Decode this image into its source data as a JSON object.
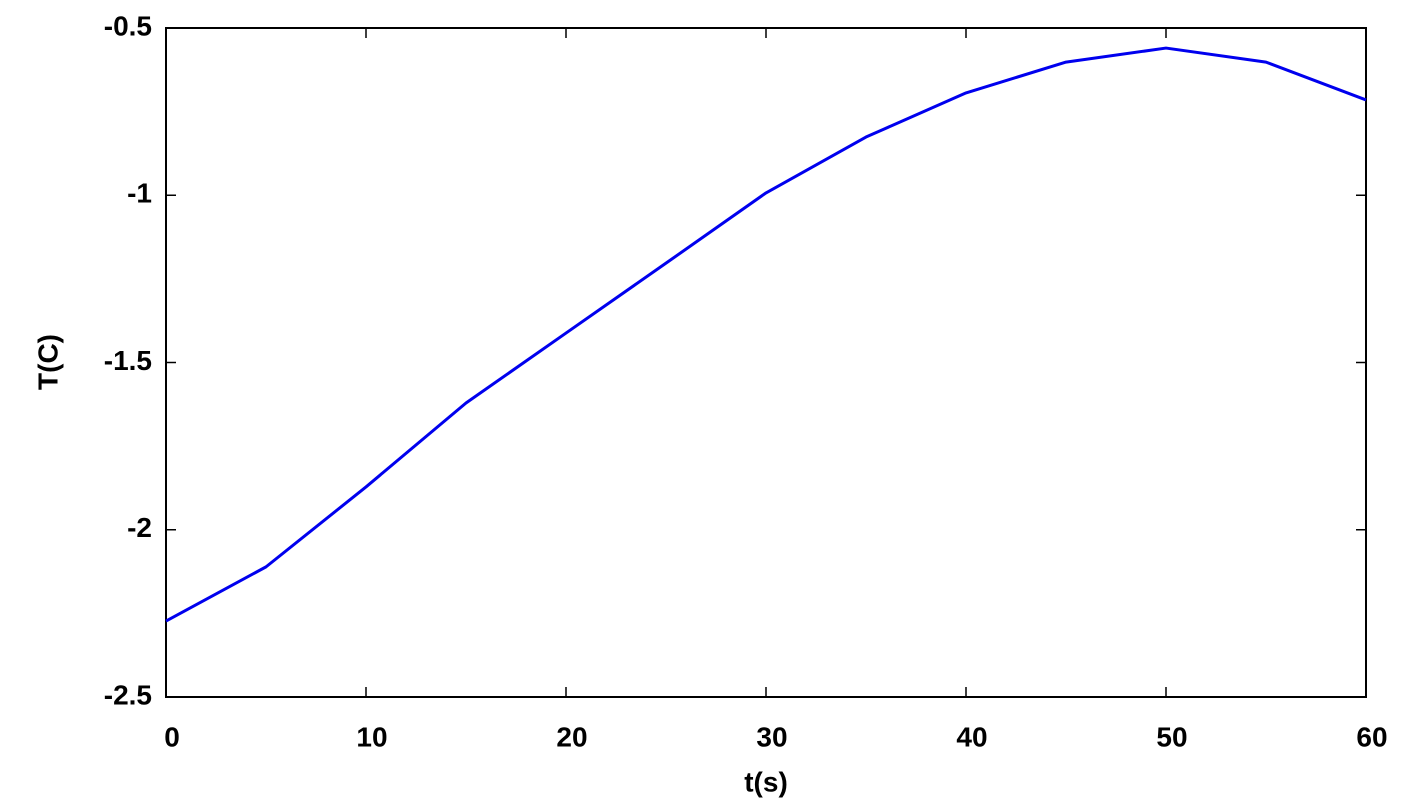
{
  "chart_data": {
    "type": "line",
    "xlabel": "t(s)",
    "ylabel": "T(C)",
    "x": [
      0,
      5,
      10,
      15,
      20,
      25,
      30,
      35,
      40,
      45,
      50,
      55,
      60
    ],
    "series": [
      {
        "color": "#0000ee",
        "values": [
          -2.273,
          -2.111,
          -1.872,
          -1.621,
          -1.412,
          -1.203,
          -0.993,
          -0.826,
          -0.694,
          -0.602,
          -0.56,
          -0.602,
          -0.715
        ]
      }
    ],
    "xlim": [
      0,
      60
    ],
    "ylim": [
      -2.5,
      -0.5
    ],
    "xticks": [
      0,
      10,
      20,
      30,
      40,
      50,
      60
    ],
    "yticks": [
      -2.5,
      -2,
      -1.5,
      -1,
      -0.5
    ],
    "grid": false
  }
}
